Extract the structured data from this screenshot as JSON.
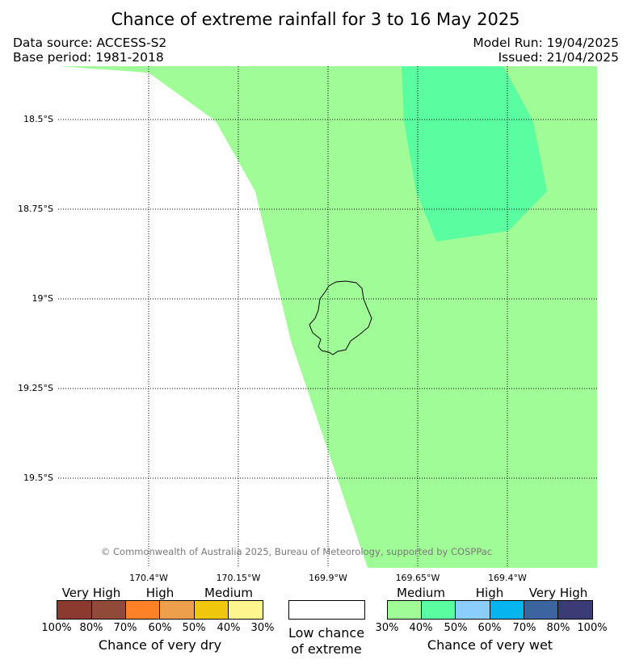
{
  "header": {
    "title": "Chance of extreme rainfall for 3 to 16 May 2025",
    "data_source": "Data source: ACCESS-S2",
    "base_period": "Base period: 1981-2018",
    "model_run": "Model Run: 19/04/2025",
    "issued": "Issued: 21/04/2025"
  },
  "map": {
    "lat_labels": [
      "18.5°S",
      "18.75°S",
      "19°S",
      "19.25°S",
      "19.5°S"
    ],
    "lon_labels": [
      "170.4°W",
      "170.15°W",
      "169.9°W",
      "169.65°W",
      "169.4°W"
    ],
    "copyright": "© Commonwealth of Australia 2025, Bureau of Meteorology, supported by COSPPac",
    "colors": {
      "medium_wet": "#a0fc96",
      "high_wet_40_50": "#5afea0",
      "land_outline": "#000000"
    }
  },
  "legend": {
    "dry": {
      "categories": [
        "Very High",
        "High",
        "Medium"
      ],
      "colors": [
        "#8c3a30",
        "#914a38",
        "#ff8127",
        "#ee9f4c",
        "#efc70d",
        "#fff68f"
      ],
      "ticks": [
        "100%",
        "80%",
        "70%",
        "60%",
        "50%",
        "40%",
        "30%"
      ],
      "caption": "Chance of very dry"
    },
    "neutral": {
      "color": "#ffffff",
      "caption_line1": "Low chance",
      "caption_line2": "of extreme"
    },
    "wet": {
      "categories": [
        "Medium",
        "High",
        "Very High"
      ],
      "colors": [
        "#a0fc96",
        "#5afea0",
        "#8bcdfd",
        "#06b4ee",
        "#3c649f",
        "#3b3c76"
      ],
      "ticks": [
        "30%",
        "40%",
        "50%",
        "60%",
        "70%",
        "80%",
        "100%"
      ],
      "caption": "Chance of very wet"
    }
  }
}
